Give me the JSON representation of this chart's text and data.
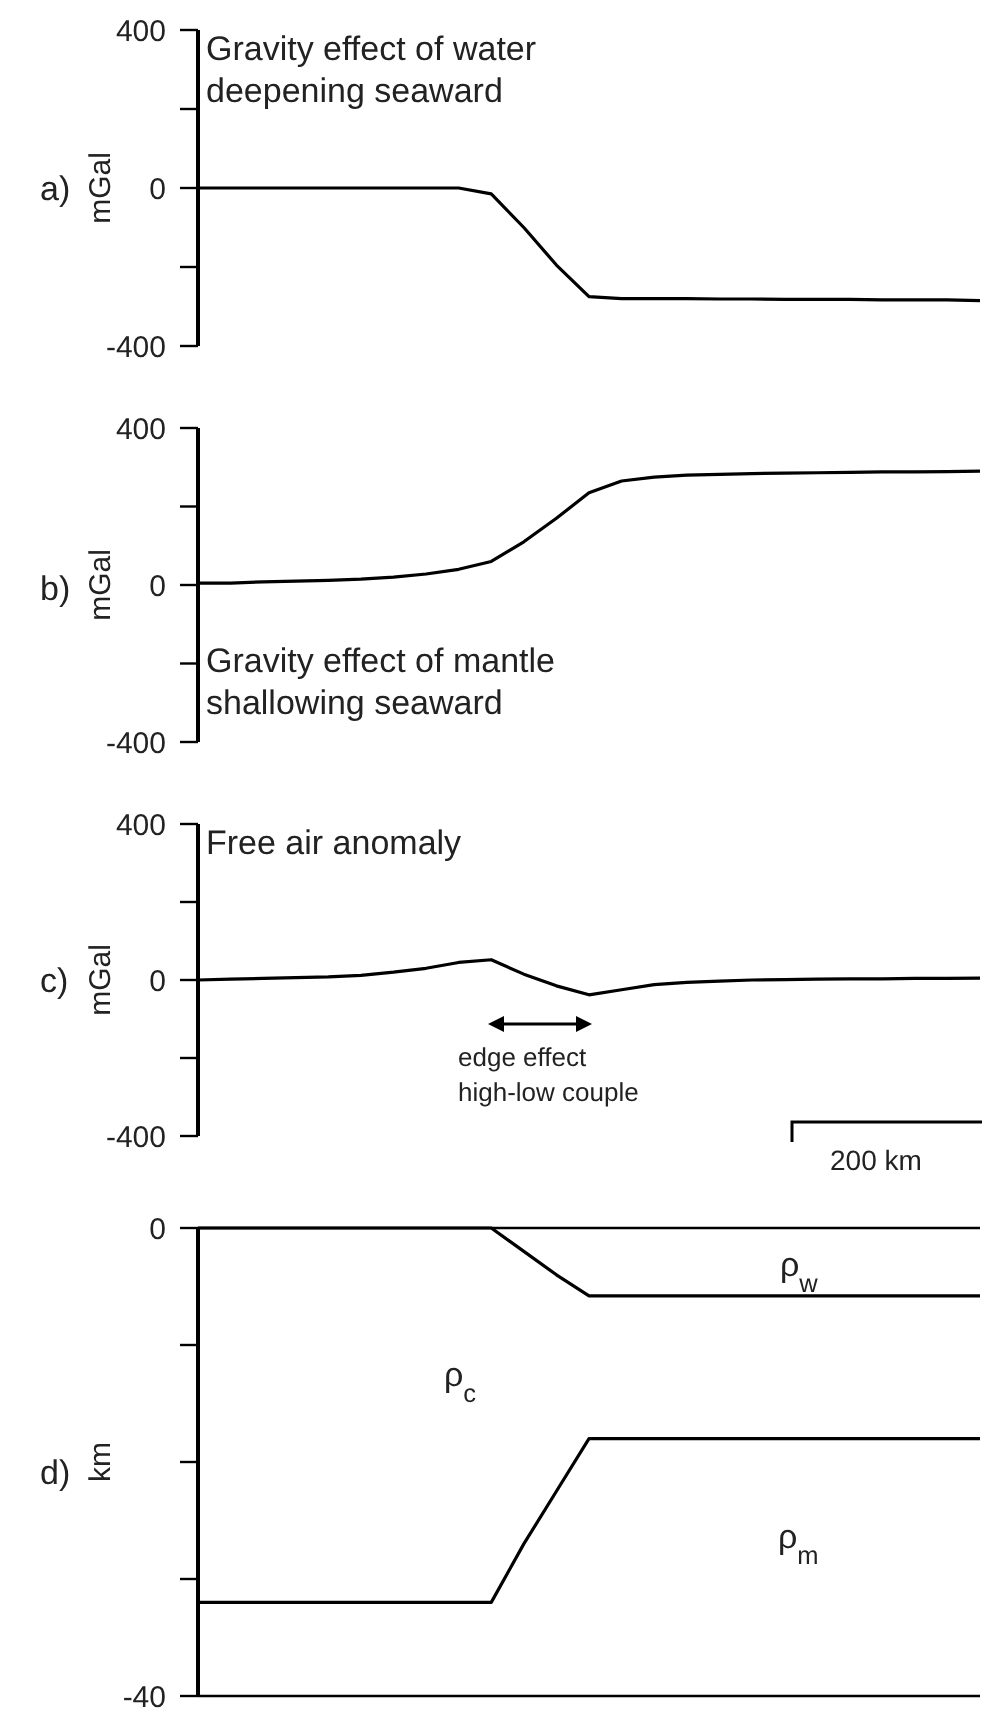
{
  "chart_data": [
    {
      "type": "line",
      "title": "Gravity effect of water deepening seaward",
      "ylabel": "mGal",
      "annotations": [
        "a)"
      ],
      "categories": [
        null,
        null,
        null,
        null,
        null,
        null,
        null,
        null,
        null,
        null,
        null,
        null,
        null,
        null,
        null,
        null,
        null,
        null,
        null,
        null,
        null,
        null,
        null,
        null,
        null
      ],
      "ylim": [
        -400,
        400
      ],
      "yticks": [
        -400,
        {
          "value": -200,
          "label": null
        },
        0,
        {
          "value": 200,
          "label": null
        },
        400
      ],
      "tick_labels": "y",
      "series": [
        {
          "color": "#000000",
          "values": [
            0,
            0,
            0,
            0,
            0,
            0,
            0,
            0,
            0,
            -15,
            -100,
            -195,
            -275,
            -280,
            -280,
            -280,
            -281,
            -281,
            -282,
            -282,
            -282,
            -283,
            -283,
            -283,
            -285
          ]
        }
      ]
    },
    {
      "type": "line",
      "title": "Gravity effect of mantle shallowing seaward",
      "ylabel": "mGal",
      "annotations": [
        "b)"
      ],
      "categories": [
        null,
        null,
        null,
        null,
        null,
        null,
        null,
        null,
        null,
        null,
        null,
        null,
        null,
        null,
        null,
        null,
        null,
        null,
        null,
        null,
        null,
        null,
        null,
        null,
        null
      ],
      "ylim": [
        -400,
        400
      ],
      "yticks": [
        -400,
        {
          "value": -200,
          "label": null
        },
        0,
        {
          "value": 200,
          "label": null
        },
        400
      ],
      "tick_labels": "y",
      "series": [
        {
          "color": "#000000",
          "values": [
            5,
            5,
            8,
            10,
            12,
            15,
            20,
            28,
            40,
            60,
            110,
            170,
            235,
            265,
            275,
            280,
            282,
            284,
            285,
            286,
            287,
            288,
            288,
            289,
            290
          ]
        }
      ]
    },
    {
      "type": "line",
      "title": "Free air anomaly",
      "ylabel": "mGal",
      "annotations": [
        "c)",
        "edge effect high-low couple",
        "200 km"
      ],
      "categories": [
        null,
        null,
        null,
        null,
        null,
        null,
        null,
        null,
        null,
        null,
        null,
        null,
        null,
        null,
        null,
        null,
        null,
        null,
        null,
        null,
        null,
        null,
        null,
        null,
        null
      ],
      "ylim": [
        -400,
        400
      ],
      "yticks": [
        -400,
        {
          "value": -200,
          "label": null
        },
        0,
        {
          "value": 200,
          "label": null
        },
        400
      ],
      "tick_labels": "y",
      "series": [
        {
          "color": "#000000",
          "values": [
            0,
            2,
            4,
            6,
            8,
            12,
            20,
            30,
            45,
            52,
            15,
            -15,
            -38,
            -25,
            -12,
            -6,
            -3,
            0,
            1,
            2,
            3,
            3,
            4,
            4,
            5
          ]
        }
      ]
    },
    {
      "type": "line",
      "ylabel": "km",
      "annotations": [
        "d)",
        "ρ$_{w}$",
        "ρ$_{c}$",
        "ρ$_{m}$"
      ],
      "categories": [
        null,
        null,
        null,
        null,
        null,
        null,
        null,
        null,
        null,
        null,
        null,
        null,
        null,
        null,
        null,
        null,
        null,
        null,
        null,
        null,
        null,
        null,
        null,
        null,
        null
      ],
      "ylim": [
        -40,
        0
      ],
      "yticks": [
        -40,
        {
          "value": -30,
          "label": null
        },
        {
          "value": -20,
          "label": null
        },
        {
          "value": -10,
          "label": null
        },
        0
      ],
      "tick_labels": "y",
      "ref_lines": [
        {
          "axis": "y",
          "value": 0
        },
        {
          "axis": "y",
          "value": -40
        }
      ],
      "series": [
        {
          "color": "#000000",
          "values": [
            0,
            0,
            0,
            0,
            0,
            0,
            0,
            0,
            0,
            0,
            -2,
            -4,
            -5.8,
            -5.8,
            -5.8,
            -5.8,
            -5.8,
            -5.8,
            -5.8,
            -5.8,
            -5.8,
            -5.8,
            -5.8,
            -5.8,
            -5.8
          ]
        },
        {
          "color": "#000000",
          "values": [
            -32,
            -32,
            -32,
            -32,
            -32,
            -32,
            -32,
            -32,
            -32,
            -32,
            -27,
            -22.5,
            -18,
            -18,
            -18,
            -18,
            -18,
            -18,
            -18,
            -18,
            -18,
            -18,
            -18,
            -18,
            -18
          ]
        }
      ]
    }
  ]
}
